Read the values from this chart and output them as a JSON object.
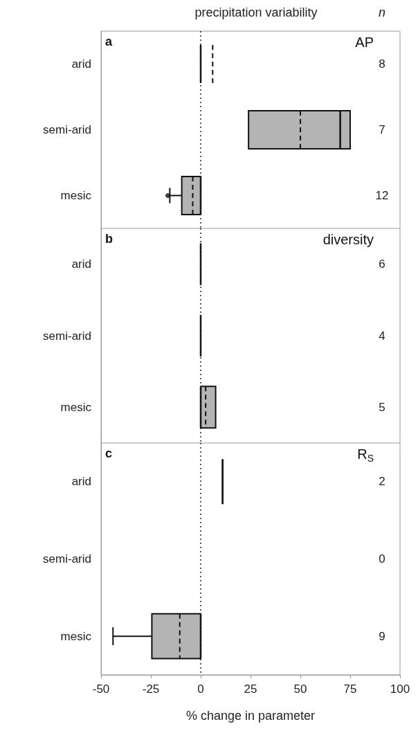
{
  "chart_data": [
    {
      "type": "box",
      "orientation": "horizontal",
      "title": "AP",
      "colors": [
        "#111111",
        "#b4b4b4",
        "#b4b4b4"
      ],
      "categories": [
        "arid",
        "semi-arid",
        "mesic"
      ],
      "boxes": [
        {
          "low": 0,
          "q1": 0,
          "median": 0,
          "q3": 0,
          "high": 0,
          "mean": 6
        },
        {
          "low": 24,
          "q1": 24,
          "median": 70,
          "q3": 75,
          "high": 75,
          "mean": 50
        },
        {
          "low": -15.5,
          "q1": -9.5,
          "median": 0,
          "q3": 0,
          "high": 0,
          "mean": -4,
          "outliers": [
            -16.5
          ]
        }
      ],
      "xlim": [
        -50,
        100
      ],
      "xticks": [
        -50,
        -25,
        0,
        25,
        50,
        75,
        100
      ],
      "tick_labels": "y",
      "ref_lines": [
        {
          "axis": "x",
          "value": 0,
          "line_style": "dotted"
        }
      ],
      "annotations": [
        "a",
        "precipitation variability",
        "n",
        "8",
        "7",
        "12"
      ]
    },
    {
      "type": "box",
      "orientation": "horizontal",
      "title": "diversity",
      "colors": [
        "#111111",
        "#111111",
        "#b4b4b4"
      ],
      "categories": [
        "arid",
        "semi-arid",
        "mesic"
      ],
      "boxes": [
        {
          "low": 0,
          "q1": 0,
          "median": 0,
          "q3": 0,
          "high": 0,
          "mean": 0
        },
        {
          "low": 0,
          "q1": 0,
          "median": 0,
          "q3": 0,
          "high": 0,
          "mean": 0
        },
        {
          "low": 0,
          "q1": 0,
          "median": 0,
          "q3": 7.5,
          "high": 7.5,
          "mean": 2.5
        }
      ],
      "xlim": [
        -50,
        100
      ],
      "xticks": [
        -50,
        -25,
        0,
        25,
        50,
        75,
        100
      ],
      "tick_labels": "y",
      "ref_lines": [
        {
          "axis": "x",
          "value": 0,
          "line_style": "dotted"
        }
      ],
      "annotations": [
        "b",
        "6",
        "4",
        "5"
      ]
    },
    {
      "type": "box",
      "orientation": "horizontal",
      "title": "R$_{S}$",
      "colors": [
        "#111111",
        null,
        "#b4b4b4"
      ],
      "categories": [
        "arid",
        "semi-arid",
        "mesic"
      ],
      "boxes": [
        {
          "low": 11,
          "q1": 11,
          "median": 11,
          "q3": 11,
          "high": 11
        },
        null,
        {
          "low": -44,
          "q1": -24.5,
          "median": 0,
          "q3": 0,
          "high": 0,
          "mean": -10.5
        }
      ],
      "xlim": [
        -50,
        100
      ],
      "xticks": [
        -50,
        -25,
        0,
        25,
        50,
        75,
        100
      ],
      "xlabel": "% change in parameter",
      "ref_lines": [
        {
          "axis": "x",
          "value": 0,
          "line_style": "dotted"
        }
      ],
      "annotations": [
        "c",
        "2",
        "0",
        "9"
      ]
    }
  ]
}
